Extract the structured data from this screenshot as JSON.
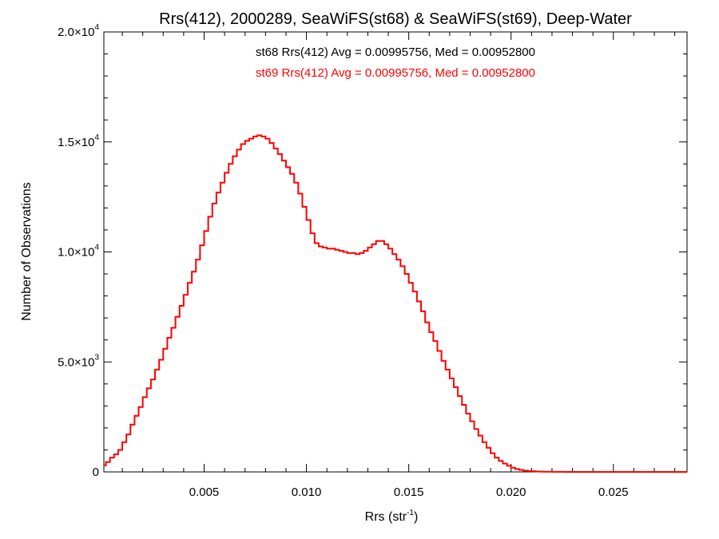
{
  "chart_data": {
    "type": "line",
    "title": "Rrs(412), 2000289, SeaWiFS(st68) & SeaWiFS(st69), Deep-Water",
    "xlabel": "Rrs (str",
    "xlabel_sup": "-1",
    "xlabel_tail": ")",
    "ylabel": "Number of Observations",
    "xlim": [
      0.0001,
      0.0286
    ],
    "ylim": [
      0,
      20000
    ],
    "x_ticks": [
      {
        "value": 0.005,
        "label": "0.005"
      },
      {
        "value": 0.01,
        "label": "0.010"
      },
      {
        "value": 0.015,
        "label": "0.015"
      },
      {
        "value": 0.02,
        "label": "0.020"
      },
      {
        "value": 0.025,
        "label": "0.025"
      }
    ],
    "y_ticks": [
      {
        "value": 0,
        "mant": "0",
        "exp": ""
      },
      {
        "value": 5000,
        "mant": "5.0×10",
        "exp": "3"
      },
      {
        "value": 10000,
        "mant": "1.0×10",
        "exp": "4"
      },
      {
        "value": 15000,
        "mant": "1.5×10",
        "exp": "4"
      },
      {
        "value": 20000,
        "mant": "2.0×10",
        "exp": "4"
      }
    ],
    "annotations": [
      {
        "text": "st68 Rrs(412) Avg = 0.00995756, Med = 0.00952800",
        "color": "#000000"
      },
      {
        "text": "st69 Rrs(412) Avg = 0.00995756, Med = 0.00952800",
        "color": "#ff0000"
      }
    ],
    "series": [
      {
        "color": "#ff0000",
        "style": "step",
        "x": [
          0.0001,
          0.0002,
          0.0004,
          0.0006,
          0.0008,
          0.001,
          0.0012,
          0.0014,
          0.0016,
          0.0018,
          0.002,
          0.0022,
          0.0024,
          0.0026,
          0.0028,
          0.003,
          0.0032,
          0.0034,
          0.0036,
          0.0038,
          0.004,
          0.0042,
          0.0044,
          0.0046,
          0.0048,
          0.005,
          0.0052,
          0.0054,
          0.0056,
          0.0058,
          0.006,
          0.0062,
          0.0064,
          0.0066,
          0.0068,
          0.007,
          0.0072,
          0.0074,
          0.0076,
          0.0078,
          0.008,
          0.0082,
          0.0084,
          0.0086,
          0.0088,
          0.009,
          0.0092,
          0.0094,
          0.0096,
          0.0098,
          0.01,
          0.0102,
          0.0104,
          0.0106,
          0.0108,
          0.011,
          0.0112,
          0.0114,
          0.0116,
          0.0118,
          0.012,
          0.0122,
          0.0124,
          0.0126,
          0.0128,
          0.013,
          0.0132,
          0.0134,
          0.0136,
          0.0138,
          0.014,
          0.0142,
          0.0144,
          0.0146,
          0.0148,
          0.015,
          0.0152,
          0.0154,
          0.0156,
          0.0158,
          0.016,
          0.0162,
          0.0164,
          0.0166,
          0.0168,
          0.017,
          0.0172,
          0.0174,
          0.0176,
          0.0178,
          0.018,
          0.0182,
          0.0184,
          0.0186,
          0.0188,
          0.019,
          0.0192,
          0.0194,
          0.0196,
          0.0198,
          0.02,
          0.0202,
          0.0204,
          0.0206,
          0.0208,
          0.021,
          0.0212,
          0.0214,
          0.0216,
          0.0218,
          0.022,
          0.0222,
          0.0224,
          0.0226,
          0.0228,
          0.023,
          0.0235,
          0.024,
          0.0245,
          0.025,
          0.026,
          0.027,
          0.0286
        ],
        "y": [
          300,
          450,
          650,
          800,
          1000,
          1350,
          1700,
          2150,
          2550,
          2950,
          3400,
          3800,
          4200,
          4650,
          5100,
          5600,
          6100,
          6550,
          7050,
          7550,
          8050,
          8600,
          9100,
          9650,
          10300,
          10950,
          11600,
          12200,
          12700,
          13150,
          13600,
          14000,
          14350,
          14650,
          14900,
          15050,
          15150,
          15250,
          15300,
          15250,
          15150,
          14950,
          14700,
          14450,
          14150,
          13850,
          13550,
          13150,
          12650,
          12050,
          11450,
          10850,
          10400,
          10250,
          10200,
          10150,
          10150,
          10100,
          10050,
          10000,
          9950,
          9950,
          9900,
          9950,
          10050,
          10200,
          10350,
          10500,
          10500,
          10350,
          10150,
          9900,
          9650,
          9350,
          9000,
          8600,
          8200,
          7750,
          7300,
          6800,
          6350,
          5950,
          5500,
          5050,
          4650,
          4250,
          3850,
          3450,
          3050,
          2650,
          2300,
          1950,
          1650,
          1350,
          1100,
          850,
          650,
          500,
          380,
          280,
          190,
          130,
          90,
          60,
          40,
          30,
          20,
          15,
          10,
          8,
          5,
          4,
          3,
          2,
          2,
          1,
          1,
          0,
          0,
          0,
          0,
          0,
          0
        ]
      }
    ]
  }
}
